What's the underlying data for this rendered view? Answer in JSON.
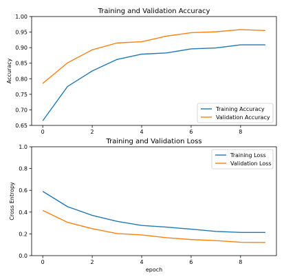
{
  "colors": {
    "training": "#1f77b4",
    "validation": "#ff7f0e"
  },
  "chart_data": [
    {
      "type": "line",
      "title": "Training and Validation Accuracy",
      "xlabel": "",
      "ylabel": "Accuracy",
      "x": [
        0,
        1,
        2,
        3,
        4,
        5,
        6,
        7,
        8,
        9
      ],
      "xlim": [
        -0.45,
        9.45
      ],
      "ylim": [
        0.65,
        1.0
      ],
      "xticks": [
        0,
        2,
        4,
        6,
        8
      ],
      "yticks": [
        0.65,
        0.7,
        0.75,
        0.8,
        0.85,
        0.9,
        0.95,
        1.0
      ],
      "ytick_labels": [
        "0.65",
        "0.70",
        "0.75",
        "0.80",
        "0.85",
        "0.90",
        "0.95",
        "1.00"
      ],
      "grid": false,
      "legend_position": "bottom-right",
      "series": [
        {
          "name": "Training Accuracy",
          "color": "#1f77b4",
          "values": [
            0.665,
            0.775,
            0.825,
            0.862,
            0.879,
            0.883,
            0.896,
            0.899,
            0.909,
            0.909
          ]
        },
        {
          "name": "Validation Accuracy",
          "color": "#ff7f0e",
          "values": [
            0.785,
            0.851,
            0.893,
            0.915,
            0.919,
            0.937,
            0.948,
            0.951,
            0.958,
            0.955
          ]
        }
      ]
    },
    {
      "type": "line",
      "title": "Training and Validation Loss",
      "xlabel": "epoch",
      "ylabel": "Cross Entropy",
      "x": [
        0,
        1,
        2,
        3,
        4,
        5,
        6,
        7,
        8,
        9
      ],
      "xlim": [
        -0.45,
        9.45
      ],
      "ylim": [
        0.0,
        1.0
      ],
      "xticks": [
        0,
        2,
        4,
        6,
        8
      ],
      "yticks": [
        0.0,
        0.2,
        0.4,
        0.6,
        0.8,
        1.0
      ],
      "ytick_labels": [
        "0.0",
        "0.2",
        "0.4",
        "0.6",
        "0.8",
        "1.0"
      ],
      "grid": false,
      "legend_position": "top-right",
      "series": [
        {
          "name": "Training Loss",
          "color": "#1f77b4",
          "values": [
            0.59,
            0.45,
            0.37,
            0.315,
            0.277,
            0.262,
            0.243,
            0.223,
            0.213,
            0.213
          ]
        },
        {
          "name": "Validation Loss",
          "color": "#ff7f0e",
          "values": [
            0.415,
            0.306,
            0.248,
            0.203,
            0.19,
            0.165,
            0.148,
            0.138,
            0.123,
            0.121
          ]
        }
      ]
    }
  ]
}
